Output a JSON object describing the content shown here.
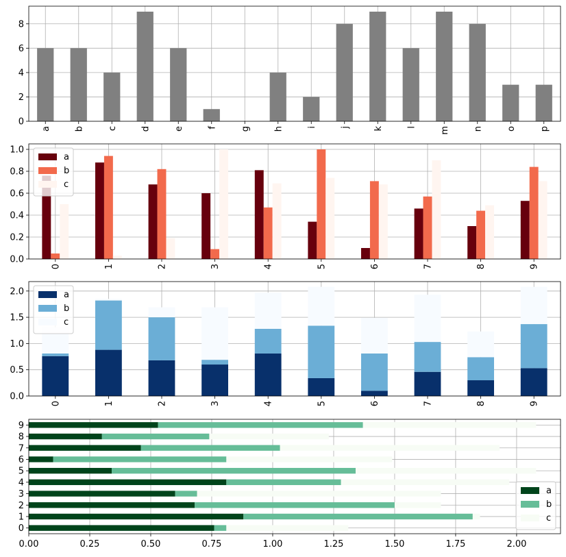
{
  "chart_data": [
    {
      "type": "bar",
      "orientation": "vertical",
      "categories": [
        "a",
        "b",
        "c",
        "d",
        "e",
        "f",
        "g",
        "h",
        "i",
        "j",
        "k",
        "l",
        "m",
        "n",
        "o",
        "p"
      ],
      "series": [
        {
          "values": [
            6,
            6,
            4,
            9,
            6,
            1,
            0,
            4,
            2,
            8,
            9,
            6,
            9,
            8,
            3,
            3
          ],
          "color": "#808080"
        }
      ],
      "ylim": [
        0,
        9.45
      ],
      "yticks": [
        0,
        2,
        4,
        6,
        8
      ],
      "xtick_rotation": 90,
      "grid": true
    },
    {
      "type": "bar",
      "orientation": "vertical",
      "grouping": "grouped",
      "categories": [
        "0",
        "1",
        "2",
        "3",
        "4",
        "5",
        "6",
        "7",
        "8",
        "9"
      ],
      "series": [
        {
          "name": "a",
          "color": "#67000d",
          "values": [
            0.76,
            0.88,
            0.68,
            0.6,
            0.81,
            0.34,
            0.1,
            0.46,
            0.3,
            0.53
          ]
        },
        {
          "name": "b",
          "color": "#f26a4c",
          "values": [
            0.05,
            0.94,
            0.82,
            0.09,
            0.47,
            1.0,
            0.71,
            0.57,
            0.44,
            0.84
          ]
        },
        {
          "name": "c",
          "color": "#fff5f0",
          "values": [
            0.5,
            0.03,
            0.19,
            1.0,
            0.69,
            0.74,
            0.68,
            0.9,
            0.49,
            0.71
          ]
        }
      ],
      "ylim": [
        0,
        1.05
      ],
      "yticks": [
        0.0,
        0.2,
        0.4,
        0.6,
        0.8,
        1.0
      ],
      "xtick_rotation": 90,
      "grid": true,
      "legend_position": "upper-left"
    },
    {
      "type": "bar",
      "orientation": "vertical",
      "grouping": "stacked",
      "categories": [
        "0",
        "1",
        "2",
        "3",
        "4",
        "5",
        "6",
        "7",
        "8",
        "9"
      ],
      "series": [
        {
          "name": "a",
          "color": "#08306b",
          "values": [
            0.76,
            0.88,
            0.68,
            0.6,
            0.81,
            0.34,
            0.1,
            0.46,
            0.3,
            0.53
          ]
        },
        {
          "name": "b",
          "color": "#6baed6",
          "values": [
            0.05,
            0.94,
            0.82,
            0.09,
            0.47,
            1.0,
            0.71,
            0.57,
            0.44,
            0.84
          ]
        },
        {
          "name": "c",
          "color": "#f7fbff",
          "values": [
            0.5,
            0.03,
            0.19,
            1.0,
            0.69,
            0.74,
            0.68,
            0.9,
            0.49,
            0.71
          ]
        }
      ],
      "ylim": [
        0,
        2.18
      ],
      "yticks": [
        0.0,
        0.5,
        1.0,
        1.5,
        2.0
      ],
      "xtick_rotation": 90,
      "grid": true,
      "legend_position": "upper-left"
    },
    {
      "type": "bar",
      "orientation": "horizontal",
      "grouping": "stacked",
      "categories": [
        "0",
        "1",
        "2",
        "3",
        "4",
        "5",
        "6",
        "7",
        "8",
        "9"
      ],
      "series": [
        {
          "name": "a",
          "color": "#00441b",
          "values": [
            0.76,
            0.88,
            0.68,
            0.6,
            0.81,
            0.34,
            0.1,
            0.46,
            0.3,
            0.53
          ]
        },
        {
          "name": "b",
          "color": "#66bd98",
          "values": [
            0.05,
            0.94,
            0.82,
            0.09,
            0.47,
            1.0,
            0.71,
            0.57,
            0.44,
            0.84
          ]
        },
        {
          "name": "c",
          "color": "#f7fcf5",
          "values": [
            0.5,
            0.03,
            0.19,
            1.0,
            0.69,
            0.74,
            0.68,
            0.9,
            0.49,
            0.71
          ]
        }
      ],
      "xlim": [
        0,
        2.18
      ],
      "xticks": [
        "0.00",
        "0.25",
        "0.50",
        "0.75",
        "1.00",
        "1.25",
        "1.50",
        "1.75",
        "2.00"
      ],
      "grid": true,
      "legend_position": "lower-right"
    }
  ]
}
